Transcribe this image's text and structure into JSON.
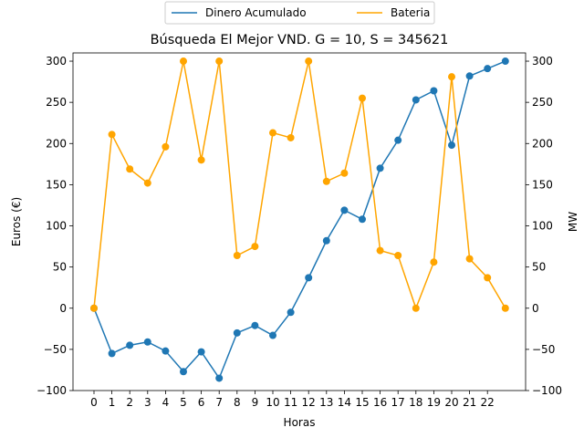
{
  "chart_data": {
    "type": "line",
    "title": "Búsqueda El Mejor VND. G = 10, S = 345621",
    "xlabel": "Horas",
    "ylabel_left": "Euros (€)",
    "ylabel_right": "MW",
    "x": [
      0,
      1,
      2,
      3,
      4,
      5,
      6,
      7,
      8,
      9,
      10,
      11,
      12,
      13,
      14,
      15,
      16,
      17,
      18,
      19,
      20,
      21,
      22,
      23
    ],
    "xtick_labels": [
      "0",
      "1",
      "2",
      "3",
      "4",
      "5",
      "6",
      "7",
      "8",
      "9",
      "10",
      "11",
      "12",
      "13",
      "14",
      "15",
      "16",
      "17",
      "18",
      "19",
      "20",
      "21",
      "22"
    ],
    "ylim": [
      -100,
      310
    ],
    "yticks": [
      -100,
      -50,
      0,
      50,
      100,
      150,
      200,
      250,
      300
    ],
    "ytick_labels": [
      "−100",
      "−50",
      "0",
      "50",
      "100",
      "150",
      "200",
      "250",
      "300"
    ],
    "grid": false,
    "legend_placement": "top-center",
    "series": [
      {
        "name": "Dinero Acumulado",
        "axis": "left",
        "color": "#1f77b4",
        "values": [
          0,
          -55,
          -45,
          -41,
          -52,
          -77,
          -53,
          -85,
          -30,
          -21,
          -33,
          -5,
          37,
          82,
          119,
          108,
          170,
          204,
          253,
          264,
          198,
          282,
          291,
          300
        ]
      },
      {
        "name": "Bateria",
        "axis": "right",
        "color": "#ffa500",
        "values": [
          0,
          211,
          169,
          152,
          196,
          300,
          180,
          300,
          64,
          75,
          213,
          207,
          300,
          154,
          164,
          255,
          70,
          64,
          0,
          56,
          281,
          60,
          37,
          0
        ]
      }
    ]
  }
}
